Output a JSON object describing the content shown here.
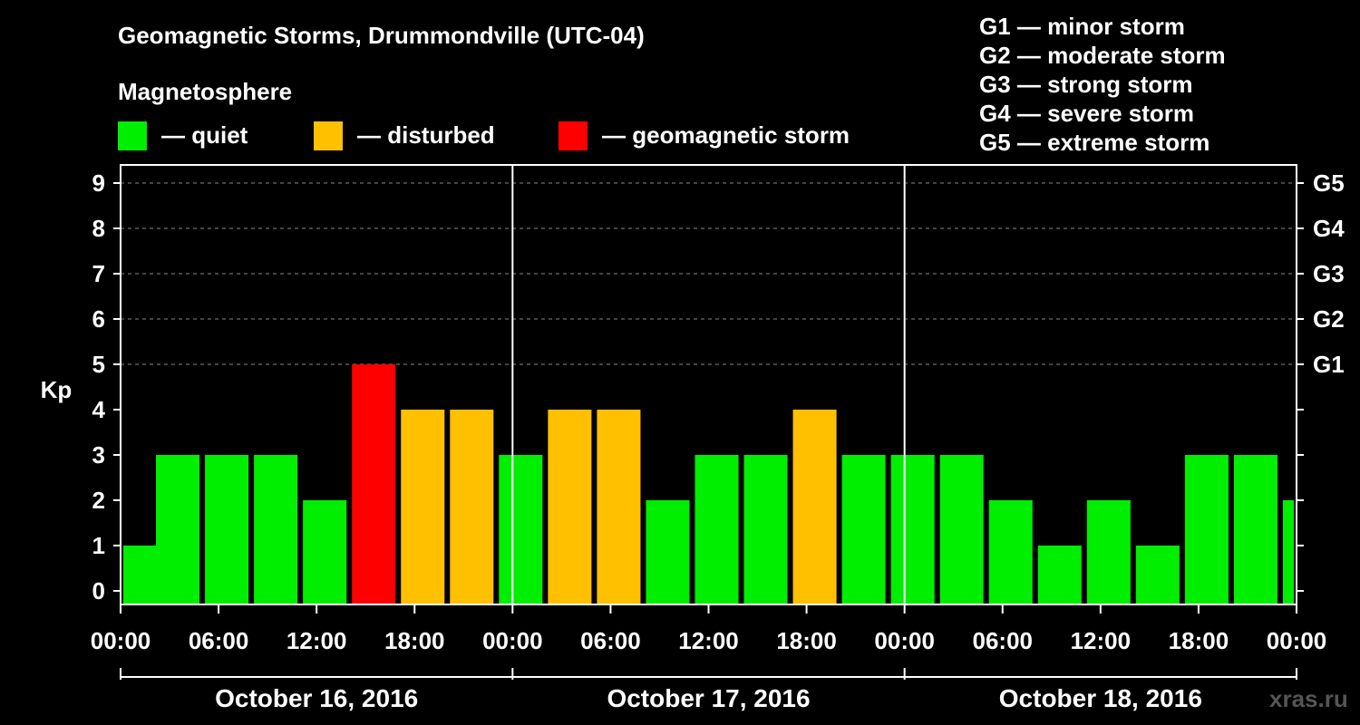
{
  "title": "Geomagnetic Storms, Drummondville (UTC-04)",
  "magnetosphere_label": "Magnetosphere",
  "legend": [
    {
      "label": "— quiet",
      "color": "#00ee00"
    },
    {
      "label": "— disturbed",
      "color": "#ffc000"
    },
    {
      "label": "— geomagnetic storm",
      "color": "#ff0000"
    }
  ],
  "g_scale": [
    "G1 — minor storm",
    "G2 — moderate storm",
    "G3 — strong storm",
    "G4 — severe storm",
    "G5 — extreme storm"
  ],
  "watermark": "xras.ru",
  "chart_data": {
    "type": "bar",
    "ylabel": "Kp",
    "ylim": [
      0,
      9
    ],
    "y_ticks": [
      "0",
      "1",
      "2",
      "3",
      "4",
      "5",
      "6",
      "7",
      "8",
      "9"
    ],
    "right_ticks": [
      {
        "kp": 5,
        "label": "G1"
      },
      {
        "kp": 6,
        "label": "G2"
      },
      {
        "kp": 7,
        "label": "G3"
      },
      {
        "kp": 8,
        "label": "G4"
      },
      {
        "kp": 9,
        "label": "G5"
      }
    ],
    "x_tick_labels": [
      "00:00",
      "06:00",
      "12:00",
      "18:00",
      "00:00",
      "06:00",
      "12:00",
      "18:00",
      "00:00",
      "06:00",
      "12:00",
      "18:00",
      "00:00"
    ],
    "dates": [
      "October 16, 2016",
      "October 17, 2016",
      "October 18, 2016"
    ],
    "bars": [
      {
        "start": "2016-10-16 00:00",
        "kp": 1
      },
      {
        "start": "2016-10-16 02:00",
        "kp": 3
      },
      {
        "start": "2016-10-16 05:00",
        "kp": 3
      },
      {
        "start": "2016-10-16 08:00",
        "kp": 3
      },
      {
        "start": "2016-10-16 11:00",
        "kp": 2
      },
      {
        "start": "2016-10-16 14:00",
        "kp": 5
      },
      {
        "start": "2016-10-16 17:00",
        "kp": 4
      },
      {
        "start": "2016-10-16 20:00",
        "kp": 4
      },
      {
        "start": "2016-10-16 23:00",
        "kp": 3
      },
      {
        "start": "2016-10-17 02:00",
        "kp": 4
      },
      {
        "start": "2016-10-17 05:00",
        "kp": 4
      },
      {
        "start": "2016-10-17 08:00",
        "kp": 2
      },
      {
        "start": "2016-10-17 11:00",
        "kp": 3
      },
      {
        "start": "2016-10-17 14:00",
        "kp": 3
      },
      {
        "start": "2016-10-17 17:00",
        "kp": 4
      },
      {
        "start": "2016-10-17 20:00",
        "kp": 3
      },
      {
        "start": "2016-10-17 23:00",
        "kp": 3
      },
      {
        "start": "2016-10-18 02:00",
        "kp": 3
      },
      {
        "start": "2016-10-18 05:00",
        "kp": 2
      },
      {
        "start": "2016-10-18 08:00",
        "kp": 1
      },
      {
        "start": "2016-10-18 11:00",
        "kp": 2
      },
      {
        "start": "2016-10-18 14:00",
        "kp": 1
      },
      {
        "start": "2016-10-18 17:00",
        "kp": 3
      },
      {
        "start": "2016-10-18 20:00",
        "kp": 3
      },
      {
        "start": "2016-10-18 23:00",
        "kp": 2
      }
    ],
    "colors": {
      "quiet": "#00ee00",
      "disturbed": "#ffc000",
      "storm": "#ff0000"
    }
  }
}
